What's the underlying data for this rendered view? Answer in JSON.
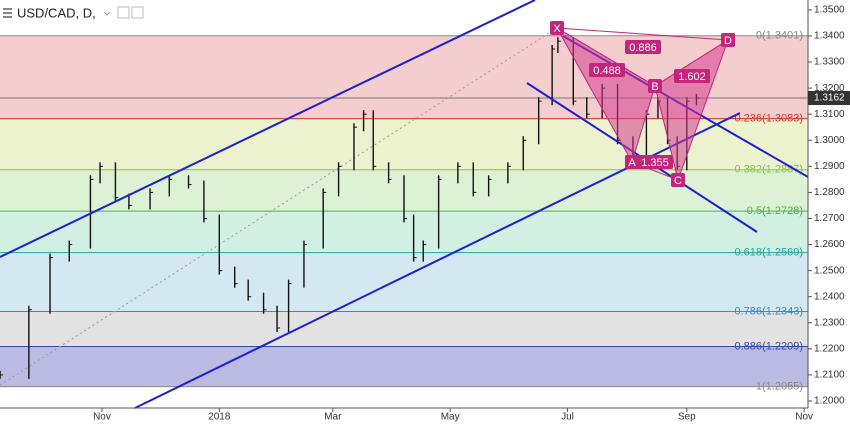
{
  "chart_data": {
    "type": "ohlc",
    "title": "USD/CAD, D,",
    "x": [
      0,
      15,
      26,
      36,
      47,
      52,
      60,
      67,
      78,
      88,
      98,
      106,
      114,
      122,
      129,
      137,
      144,
      150,
      158,
      168,
      176,
      184,
      189,
      194,
      202,
      210,
      215,
      220,
      228,
      238,
      246,
      254,
      264,
      272,
      280,
      287,
      290,
      298,
      305,
      313,
      321,
      329,
      336,
      342,
      347,
      352,
      357,
      362
    ],
    "values": [
      1.21,
      1.235,
      1.255,
      1.26,
      1.285,
      1.29,
      1.278,
      1.275,
      1.28,
      1.285,
      1.283,
      1.27,
      1.25,
      1.245,
      1.24,
      1.235,
      1.228,
      1.245,
      1.26,
      1.28,
      1.29,
      1.305,
      1.31,
      1.29,
      1.285,
      1.27,
      1.255,
      1.26,
      1.285,
      1.29,
      1.28,
      1.285,
      1.29,
      1.3,
      1.315,
      1.335,
      1.338,
      1.315,
      1.31,
      1.32,
      1.3,
      1.293,
      1.31,
      1.315,
      1.3,
      1.29,
      1.315,
      1.3162
    ],
    "color": "#111111",
    "xlim": [
      0,
      420
    ],
    "xticks": [
      {
        "value": 53,
        "label": "Nov"
      },
      {
        "value": 114,
        "label": "2018"
      },
      {
        "value": 173,
        "label": "Mar"
      },
      {
        "value": 234,
        "label": "May"
      },
      {
        "value": 295,
        "label": "Jul"
      },
      {
        "value": 357,
        "label": "Sep"
      },
      {
        "value": 418,
        "label": "Nov"
      }
    ],
    "ylim": [
      1.1973,
      1.3538
    ],
    "yticks": [
      {
        "value": 1.35,
        "label": "1.3500"
      },
      {
        "value": 1.34,
        "label": "1.3400"
      },
      {
        "value": 1.33,
        "label": "1.3300"
      },
      {
        "value": 1.32,
        "label": "1.3200"
      },
      {
        "value": 1.31,
        "label": "1.3100"
      },
      {
        "value": 1.3,
        "label": "1.3000"
      },
      {
        "value": 1.29,
        "label": "1.2900"
      },
      {
        "value": 1.28,
        "label": "1.2800"
      },
      {
        "value": 1.27,
        "label": "1.2700"
      },
      {
        "value": 1.26,
        "label": "1.2600"
      },
      {
        "value": 1.25,
        "label": "1.2500"
      },
      {
        "value": 1.24,
        "label": "1.2400"
      },
      {
        "value": 1.23,
        "label": "1.2300"
      },
      {
        "value": 1.22,
        "label": "1.2200"
      },
      {
        "value": 1.21,
        "label": "1.2100"
      },
      {
        "value": 1.2,
        "label": "1.2000"
      }
    ],
    "last_price": {
      "value": 1.3162,
      "label": "1.3162"
    },
    "fib_levels": [
      {
        "value": 1.3401,
        "label": "0(1.3401)",
        "color": "#888888"
      },
      {
        "value": 1.3083,
        "label": "0.236(1.3083)",
        "color": "#d9342b"
      },
      {
        "value": 1.2887,
        "label": "0.382(1.2887)",
        "color": "#8bc34a"
      },
      {
        "value": 1.2728,
        "label": "0.5(1.2728)",
        "color": "#4caf50"
      },
      {
        "value": 1.2569,
        "label": "0.618(1.2569)",
        "color": "#26a69a"
      },
      {
        "value": 1.2343,
        "label": "0.786(1.2343)",
        "color": "#2b8fd0"
      },
      {
        "value": 1.2209,
        "label": "0.886(1.2209)",
        "color": "#3949ab"
      },
      {
        "value": 1.2055,
        "label": "1(1.2055)",
        "color": "#888888"
      }
    ],
    "fib_fills": [
      "#f3c9c9",
      "#e9f1c8",
      "#d9f1cf",
      "#cdeedf",
      "#cfe5f0",
      "#dfdfdf",
      "#b3b3df"
    ],
    "pattern_points": [
      "X",
      "A",
      "B",
      "C",
      "D"
    ],
    "pattern_ratios": [
      "0.886",
      "0.488",
      "1.355",
      "1.602"
    ]
  }
}
